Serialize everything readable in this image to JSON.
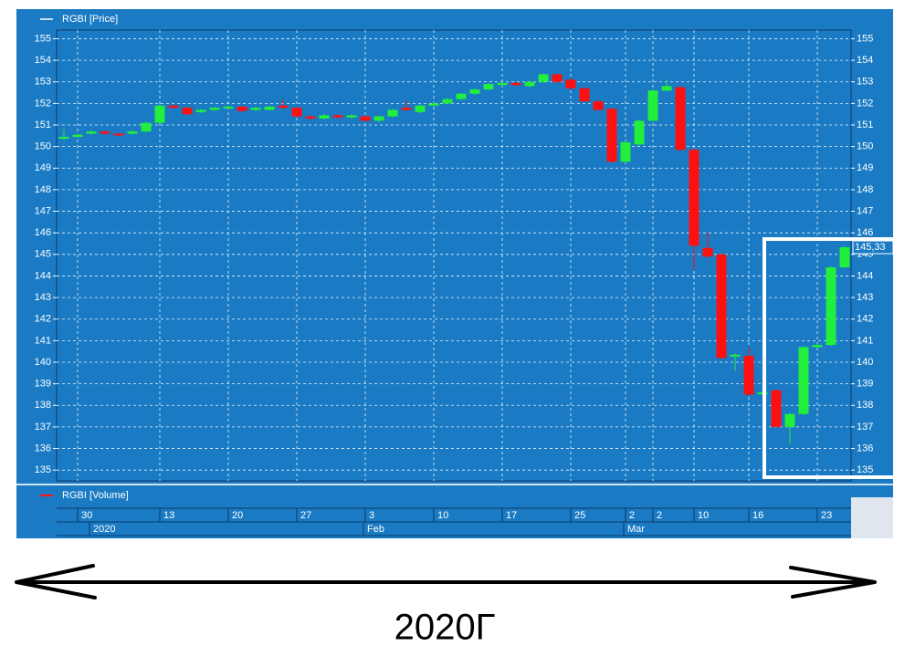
{
  "chart_data": {
    "type": "candlestick",
    "series_label": "RGBI [Price]",
    "volume_label": "RGBI [Volume]",
    "caption": "2020Г",
    "background": "#1a7bc4",
    "up_color": "#22ee3c",
    "down_color": "#ff1010",
    "ylim": [
      134.5,
      155.4
    ],
    "yticks": [
      135,
      136,
      137,
      138,
      139,
      140,
      141,
      142,
      143,
      144,
      145,
      146,
      147,
      148,
      149,
      150,
      151,
      152,
      153,
      154,
      155
    ],
    "grid": true,
    "xticks": [
      {
        "value": 1,
        "label": "30"
      },
      {
        "value": 7,
        "label": "13"
      },
      {
        "value": 12,
        "label": "20"
      },
      {
        "value": 17,
        "label": "27"
      },
      {
        "value": 22,
        "label": "3"
      },
      {
        "value": 27,
        "label": "10"
      },
      {
        "value": 32,
        "label": "17"
      },
      {
        "value": 37,
        "label": "25"
      },
      {
        "value": 41,
        "label": "2"
      },
      {
        "value": 43,
        "label": "2"
      },
      {
        "value": 46,
        "label": "10"
      },
      {
        "value": 50,
        "label": "16"
      },
      {
        "value": 55,
        "label": "23"
      }
    ],
    "period_ticks": [
      {
        "value": 2,
        "label": "2020"
      },
      {
        "value": 22,
        "label": "Feb"
      },
      {
        "value": 41,
        "label": "Mar"
      }
    ],
    "last_value_label": "145,33",
    "open": [
      150.4,
      150.45,
      150.6,
      150.7,
      150.6,
      150.6,
      150.7,
      151.1,
      151.9,
      151.8,
      151.6,
      151.7,
      151.8,
      151.85,
      151.7,
      151.7,
      151.9,
      151.8,
      151.4,
      151.3,
      151.45,
      151.35,
      151.4,
      151.2,
      151.4,
      151.8,
      151.6,
      151.9,
      152.0,
      152.2,
      152.45,
      152.65,
      152.85,
      152.95,
      152.8,
      153.0,
      153.35,
      153.1,
      152.7,
      152.1,
      151.75,
      149.3,
      150.1,
      151.2,
      152.6,
      152.75,
      149.85,
      145.3,
      145.0,
      140.3,
      140.3,
      138.55,
      138.7,
      137.0,
      137.6,
      140.7,
      140.8,
      144.4
    ],
    "high": [
      150.8,
      150.6,
      150.75,
      150.75,
      150.65,
      150.75,
      151.15,
      151.95,
      151.95,
      151.85,
      151.75,
      151.85,
      151.9,
      151.9,
      151.85,
      151.9,
      152.2,
      151.85,
      151.45,
      151.5,
      151.5,
      151.5,
      151.45,
      151.45,
      151.75,
      152.1,
      151.95,
      152.05,
      152.25,
      152.5,
      152.7,
      152.95,
      153.0,
      153.0,
      153.05,
      153.4,
      153.4,
      153.15,
      152.75,
      152.15,
      151.8,
      150.25,
      151.25,
      152.65,
      153.1,
      152.8,
      149.9,
      146.0,
      145.05,
      140.4,
      140.7,
      138.65,
      138.75,
      137.65,
      140.75,
      140.85,
      144.45,
      145.4
    ],
    "low": [
      150.3,
      150.4,
      150.55,
      150.55,
      150.5,
      150.55,
      150.65,
      151.05,
      151.75,
      151.45,
      151.55,
      151.65,
      151.75,
      151.6,
      151.65,
      151.65,
      151.75,
      151.35,
      151.25,
      151.25,
      151.3,
      151.3,
      151.15,
      151.15,
      151.35,
      151.65,
      151.55,
      151.85,
      151.95,
      152.15,
      152.4,
      152.6,
      152.8,
      152.8,
      152.75,
      152.95,
      152.95,
      152.65,
      152.05,
      151.65,
      149.25,
      149.25,
      150.05,
      151.15,
      152.55,
      149.8,
      144.3,
      144.85,
      140.15,
      139.6,
      138.45,
      138.5,
      136.95,
      136.2,
      137.55,
      140.65,
      140.75,
      144.35
    ],
    "close": [
      150.45,
      150.55,
      150.7,
      150.6,
      150.55,
      150.7,
      151.1,
      151.9,
      151.8,
      151.5,
      151.7,
      151.8,
      151.85,
      151.65,
      151.8,
      151.85,
      151.8,
      151.4,
      151.3,
      151.45,
      151.35,
      151.45,
      151.2,
      151.4,
      151.7,
      151.7,
      151.9,
      152.0,
      152.2,
      152.45,
      152.65,
      152.9,
      152.95,
      152.85,
      153.0,
      153.35,
      153.0,
      152.7,
      152.1,
      151.7,
      149.3,
      150.2,
      151.2,
      152.6,
      152.8,
      149.85,
      145.4,
      144.9,
      140.2,
      140.35,
      138.5,
      138.6,
      137.0,
      137.6,
      140.7,
      140.8,
      144.4,
      145.33
    ]
  }
}
